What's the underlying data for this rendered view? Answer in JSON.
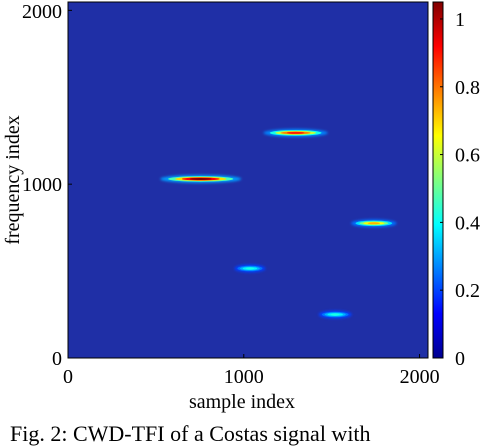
{
  "chart_data": {
    "type": "heatmap",
    "title": "",
    "xlabel": "sample index",
    "ylabel": "frequency index",
    "xlim": [
      0,
      2048
    ],
    "ylim": [
      0,
      2048
    ],
    "x_ticks": [
      0,
      1000,
      2000
    ],
    "y_ticks": [
      0,
      1000,
      2000
    ],
    "colorbar": {
      "range": [
        0,
        1.05
      ],
      "ticks": [
        "0",
        "0.2",
        "0.4",
        "0.6",
        "0.8",
        "1"
      ],
      "colormap": "jet"
    },
    "background_color": "#1f2fa6",
    "components": [
      {
        "x_start": 560,
        "x_end": 950,
        "frequency": 1030,
        "peak": 1.0
      },
      {
        "x_start": 1140,
        "x_end": 1450,
        "frequency": 1295,
        "peak": 0.85
      },
      {
        "x_start": 1630,
        "x_end": 1850,
        "frequency": 775,
        "peak": 0.7
      },
      {
        "x_start": 960,
        "x_end": 1110,
        "frequency": 515,
        "peak": 0.4
      },
      {
        "x_start": 1440,
        "x_end": 1600,
        "frequency": 250,
        "peak": 0.4
      }
    ]
  },
  "caption": "Fig. 2: CWD-TFI of a Costas signal with"
}
